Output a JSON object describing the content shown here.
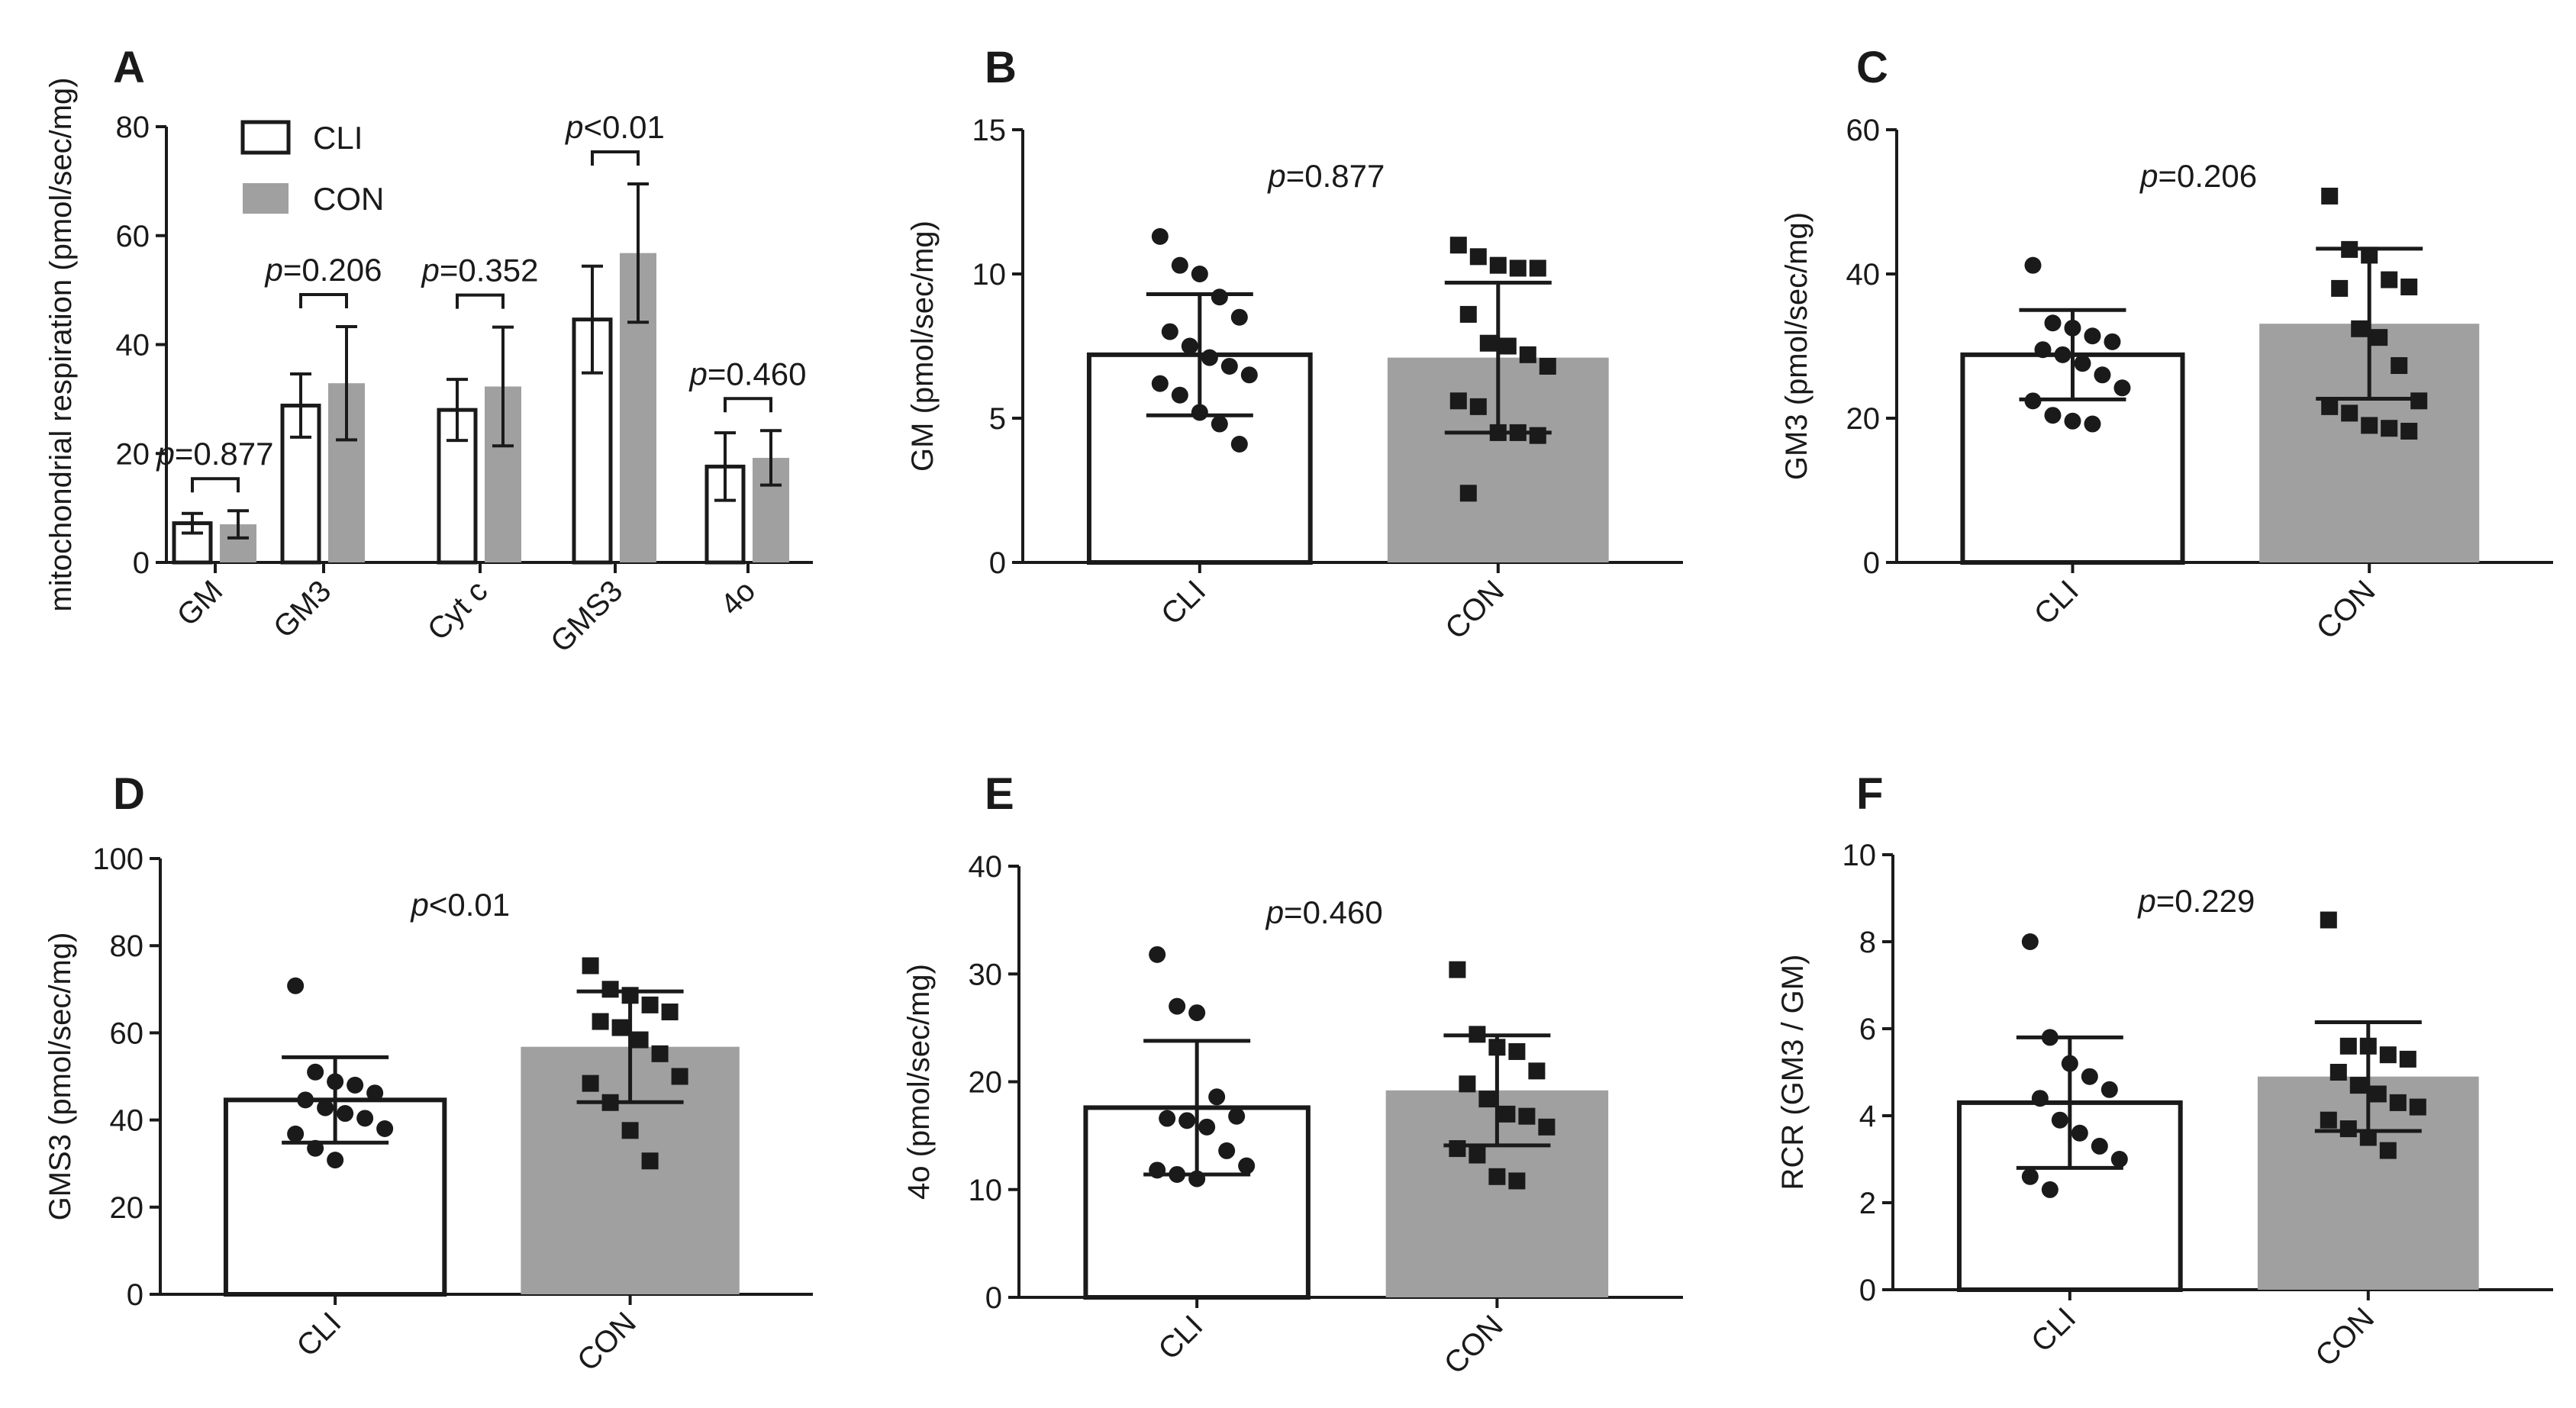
{
  "colors": {
    "cli": "#ffffff",
    "con": "#a0a0a0",
    "ink": "#1a1a1a"
  },
  "chart_data": [
    {
      "id": "A",
      "type": "bar",
      "title": "A",
      "ylabel": "mitochondrial respiration (pmol/sec/mg)",
      "ylim": [
        0,
        80
      ],
      "yticks": [
        0,
        20,
        40,
        60,
        80
      ],
      "categories": [
        "GM",
        "GM3",
        "Cyt c",
        "GMS3",
        "4o"
      ],
      "legend": {
        "position": "top-left",
        "entries": [
          "CLI",
          "CON"
        ]
      },
      "series": [
        {
          "name": "CLI",
          "values": [
            7.2,
            28.8,
            28.0,
            44.6,
            17.6
          ],
          "sd": [
            1.8,
            5.8,
            5.6,
            9.8,
            6.2
          ]
        },
        {
          "name": "CON",
          "values": [
            7.0,
            32.9,
            32.3,
            56.8,
            19.2
          ],
          "sd": [
            2.5,
            10.4,
            10.9,
            12.7,
            5.0
          ]
        }
      ],
      "comparisons": [
        {
          "prefix": "p",
          "text": "=0.877"
        },
        {
          "prefix": "p",
          "text": "=0.206"
        },
        {
          "prefix": "p",
          "text": "=0.352"
        },
        {
          "prefix": "p",
          "text": "<0.01"
        },
        {
          "prefix": "p",
          "text": "=0.460"
        }
      ]
    },
    {
      "id": "B",
      "type": "bar",
      "title": "B",
      "ylabel": "GM (pmol/sec/mg)",
      "ylim": [
        0,
        15
      ],
      "yticks": [
        0,
        5,
        10,
        15
      ],
      "categories": [
        "CLI",
        "CON"
      ],
      "values": [
        7.2,
        7.1
      ],
      "sd": [
        2.1,
        2.6
      ],
      "p_label": {
        "prefix": "p",
        "text": "=0.877"
      },
      "points": [
        [
          11.3,
          10.3,
          10.0,
          9.2,
          8.5,
          8.0,
          7.5,
          7.1,
          6.8,
          6.5,
          6.2,
          5.8,
          5.2,
          4.8,
          4.1
        ],
        [
          11.0,
          10.6,
          10.3,
          10.2,
          10.2,
          8.6,
          7.6,
          7.5,
          7.2,
          6.8,
          5.6,
          5.4,
          4.5,
          4.5,
          4.4,
          2.4
        ]
      ]
    },
    {
      "id": "C",
      "type": "bar",
      "title": "C",
      "ylabel": "GM3 (pmol/sec/mg)",
      "ylim": [
        0,
        60
      ],
      "yticks": [
        0,
        20,
        40,
        60
      ],
      "categories": [
        "CLI",
        "CON"
      ],
      "values": [
        28.8,
        33.1
      ],
      "sd": [
        6.2,
        10.4
      ],
      "p_label": {
        "prefix": "p",
        "text": "=0.206"
      },
      "points": [
        [
          41.2,
          33.2,
          32.5,
          31.4,
          30.6,
          29.5,
          28.8,
          27.6,
          26.0,
          24.2,
          22.4,
          20.4,
          19.6,
          19.2
        ],
        [
          50.8,
          43.4,
          42.6,
          39.2,
          38.2,
          38.0,
          32.4,
          31.2,
          27.3,
          22.4,
          21.6,
          20.7,
          19.0,
          18.6,
          18.2
        ]
      ]
    },
    {
      "id": "D",
      "type": "bar",
      "title": "D",
      "ylabel": "GMS3 (pmol/sec/mg)",
      "ylim": [
        0,
        100
      ],
      "yticks": [
        0,
        20,
        40,
        60,
        80,
        100
      ],
      "categories": [
        "CLI",
        "CON"
      ],
      "values": [
        44.6,
        56.8
      ],
      "sd": [
        9.8,
        12.7
      ],
      "p_label": {
        "prefix": "p",
        "text": "<0.01"
      },
      "points": [
        [
          70.8,
          51.0,
          48.8,
          48.0,
          46.2,
          44.6,
          42.8,
          41.5,
          40.4,
          38.0,
          36.8,
          33.5,
          30.8
        ],
        [
          75.4,
          70.0,
          68.6,
          66.4,
          64.8,
          62.6,
          61.2,
          58.4,
          55.2,
          50.0,
          48.4,
          44.0,
          37.6,
          30.6
        ]
      ]
    },
    {
      "id": "E",
      "type": "bar",
      "title": "E",
      "ylabel": "4o (pmol/sec/mg)",
      "ylim": [
        0,
        40
      ],
      "yticks": [
        0,
        10,
        20,
        30,
        40
      ],
      "categories": [
        "CLI",
        "CON"
      ],
      "values": [
        17.6,
        19.2
      ],
      "sd": [
        6.2,
        5.1
      ],
      "p_label": {
        "prefix": "p",
        "text": "=0.460"
      },
      "points": [
        [
          31.8,
          27.0,
          26.4,
          18.6,
          16.8,
          16.6,
          16.4,
          15.8,
          13.6,
          12.2,
          11.8,
          11.4,
          11.0
        ],
        [
          30.4,
          24.4,
          23.2,
          22.8,
          21.0,
          19.8,
          18.4,
          17.0,
          16.8,
          15.8,
          13.8,
          13.2,
          11.2,
          10.8
        ]
      ]
    },
    {
      "id": "F",
      "type": "bar",
      "title": "F",
      "ylabel": "RCR (GM3 / GM)",
      "ylim": [
        0,
        10
      ],
      "yticks": [
        0,
        2,
        4,
        6,
        8,
        10
      ],
      "categories": [
        "CLI",
        "CON"
      ],
      "values": [
        4.3,
        4.9
      ],
      "sd": [
        1.5,
        1.25
      ],
      "p_label": {
        "prefix": "p",
        "text": "=0.229"
      },
      "points": [
        [
          8.0,
          5.8,
          5.2,
          4.9,
          4.6,
          4.4,
          3.9,
          3.6,
          3.3,
          3.0,
          2.6,
          2.3
        ],
        [
          8.5,
          5.6,
          5.6,
          5.4,
          5.3,
          5.0,
          4.7,
          4.5,
          4.3,
          4.2,
          3.9,
          3.7,
          3.5,
          3.2
        ]
      ]
    }
  ]
}
